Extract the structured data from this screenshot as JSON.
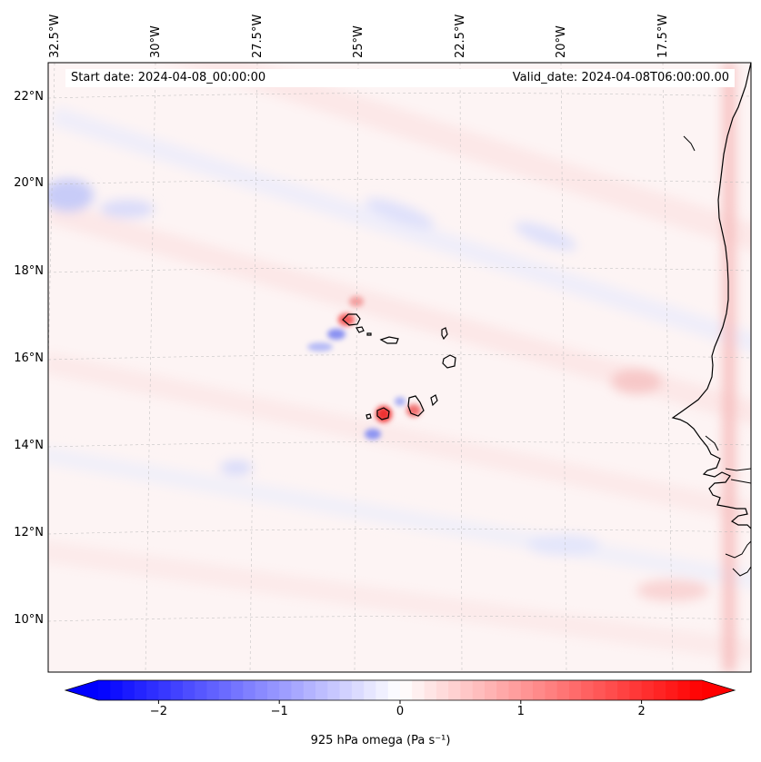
{
  "header": {
    "start_date": "Start date: 2024-04-08_00:00:00",
    "valid_date": "Valid_date: 2024-04-08T06:00:00.00"
  },
  "axes": {
    "lon_labels": [
      "32.5°W",
      "30°W",
      "27.5°W",
      "25°W",
      "22.5°W",
      "20°W",
      "17.5°W"
    ],
    "lon_values": [
      -32.5,
      -30,
      -27.5,
      -25,
      -22.5,
      -20,
      -17.5
    ],
    "lat_labels": [
      "22°N",
      "20°N",
      "18°N",
      "16°N",
      "14°N",
      "12°N",
      "10°N"
    ],
    "lat_values": [
      22,
      20,
      18,
      16,
      14,
      12,
      10
    ],
    "lon_range": [
      -33.0,
      -15.5
    ],
    "lat_range": [
      8.9,
      22.8
    ],
    "gridlines": true
  },
  "colorbar": {
    "title": "925 hPa omega (Pa s⁻¹)",
    "tick_labels": [
      "−2",
      "−1",
      "0",
      "1",
      "2"
    ],
    "tick_values": [
      -2,
      -1,
      0,
      1,
      2
    ],
    "range": [
      -2.5,
      2.5
    ],
    "extend": "both",
    "colormap": "bwr",
    "color_low": "#0000ff",
    "color_mid": "#ffffff",
    "color_high": "#ff0000"
  },
  "map": {
    "features": [
      "Cape Verde islands",
      "West African coastline"
    ],
    "coast_color": "#000000"
  }
}
